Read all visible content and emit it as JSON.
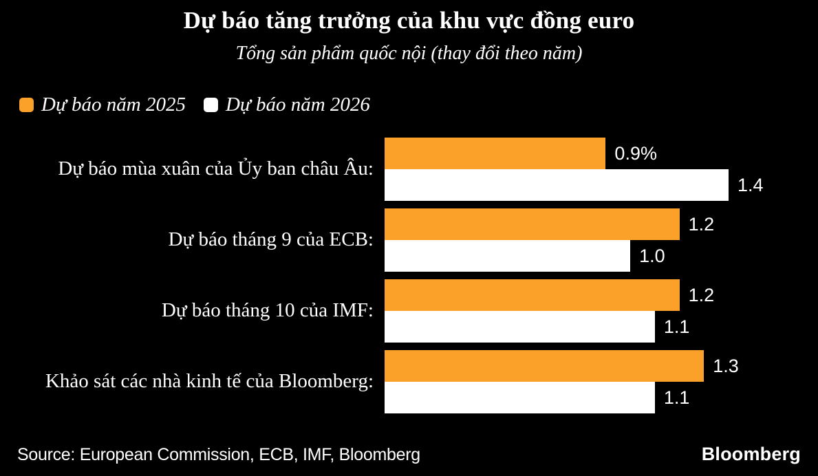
{
  "chart_data": {
    "type": "bar",
    "orientation": "horizontal",
    "title": "Dự báo tăng trưởng của khu vực đồng euro",
    "subtitle": "Tổng sản phẩm quốc nội (thay đổi theo năm)",
    "categories": [
      "Dự báo mùa xuân của Ủy ban châu Âu:",
      "Dự báo tháng 9 của ECB:",
      "Dự báo tháng 10 của IMF:",
      "Khảo sát các nhà kinh tế của Bloomberg:"
    ],
    "series": [
      {
        "name": "Dự báo năm 2025",
        "key": "2025",
        "color": "#FBA12A",
        "values": [
          0.9,
          1.2,
          1.2,
          1.3
        ],
        "value_labels": [
          "0.9%",
          "1.2",
          "1.2",
          "1.3"
        ]
      },
      {
        "name": "Dự báo năm 2026",
        "key": "2026",
        "color": "#FFFFFF",
        "values": [
          1.4,
          1.0,
          1.1,
          1.1
        ],
        "value_labels": [
          "1.4",
          "1.0",
          "1.1",
          "1.1"
        ]
      }
    ],
    "xlim": [
      0,
      1.68
    ],
    "grid": false,
    "axis_ticks": false,
    "legend_position": "top-left",
    "background": "#000000",
    "text_color": "#FFFFFF"
  },
  "footer": {
    "source": "Source: European Commission, ECB, IMF, Bloomberg",
    "brand": "Bloomberg"
  }
}
